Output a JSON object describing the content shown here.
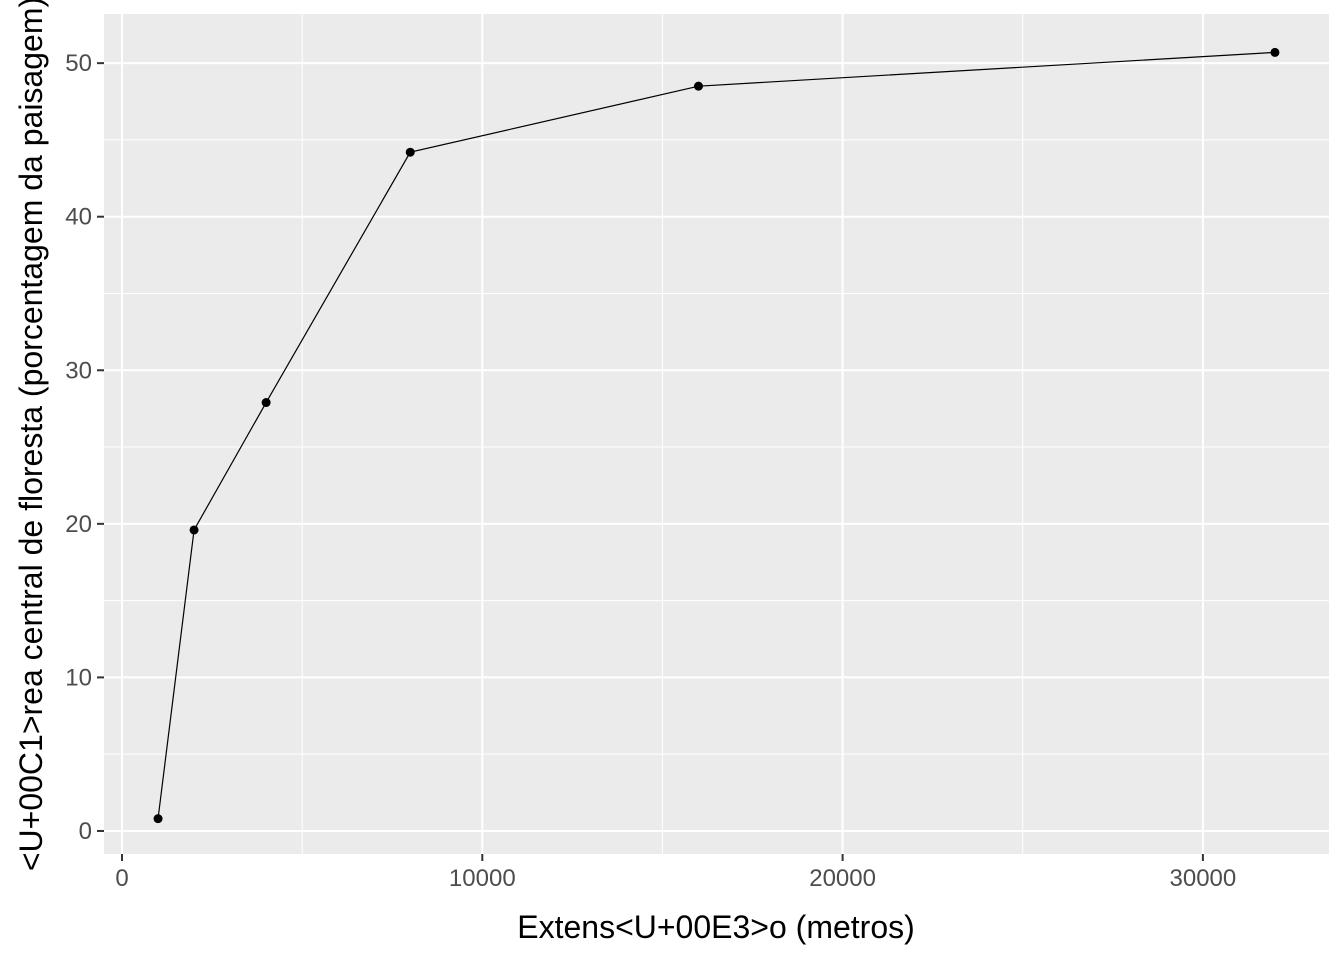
{
  "chart_data": {
    "type": "line",
    "xlabel": "Extens<U+00E3>o (metros)",
    "ylabel": "<U+00C1>rea central de floresta (porcentagem da paisagem)",
    "xlim": [
      -500,
      33500
    ],
    "ylim": [
      -1.5,
      53.2
    ],
    "x_ticks": [
      0,
      10000,
      20000,
      30000
    ],
    "x_tick_labels": [
      "0",
      "10000",
      "20000",
      "30000"
    ],
    "y_ticks": [
      0,
      10,
      20,
      30,
      40,
      50
    ],
    "y_tick_labels": [
      "0",
      "10",
      "20",
      "30",
      "40",
      "50"
    ],
    "x_minor_ticks": [
      5000,
      15000,
      25000
    ],
    "y_minor_ticks": [
      5,
      15,
      25,
      35,
      45
    ],
    "grid": true,
    "panel_color": "#ebebeb",
    "line_color": "#000000",
    "point_color": "#000000",
    "series": [
      {
        "x": [
          1000,
          2000,
          4000,
          8000,
          16000,
          32000
        ],
        "y": [
          0.8,
          19.6,
          27.9,
          44.2,
          48.5,
          50.7
        ]
      }
    ]
  }
}
